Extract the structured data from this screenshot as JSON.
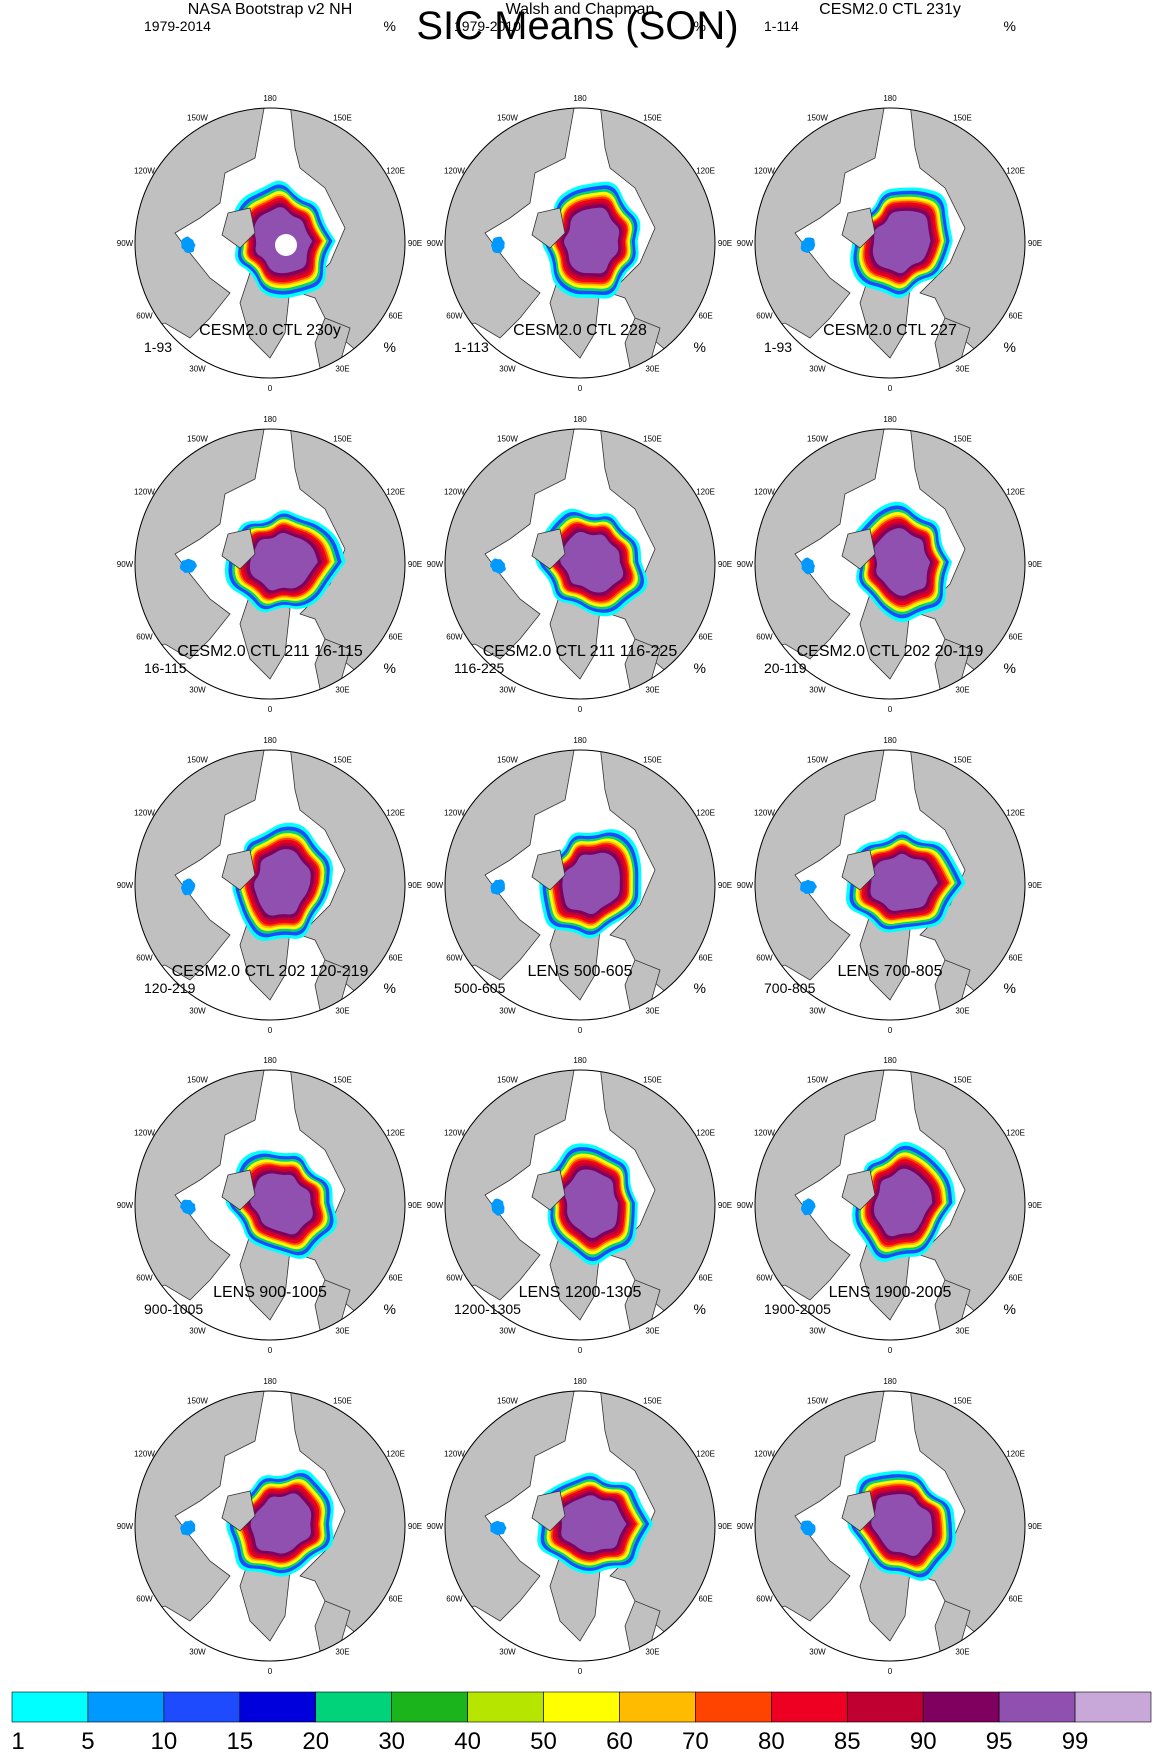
{
  "title": "SIC Means (SON)",
  "unit": "%",
  "colors": {
    "land": "#c0c0c0",
    "ocean": "#ffffff",
    "coast": "#333333"
  },
  "longitude_labels": [
    "180",
    "150E",
    "120E",
    "90E",
    "60E",
    "30E",
    "0",
    "30W",
    "60W",
    "90W",
    "120W",
    "150W"
  ],
  "panels": [
    {
      "title": "NASA Bootstrap v2 NH",
      "period": "1979-2014",
      "unit": "%"
    },
    {
      "title": "Walsh and Chapman",
      "period": "1979-2010",
      "unit": "%"
    },
    {
      "title": "CESM2.0 CTL 231y",
      "period": "1-114",
      "unit": "%"
    },
    {
      "title": "CESM2.0 CTL 230y",
      "period": "1-93",
      "unit": "%"
    },
    {
      "title": "CESM2.0 CTL 228",
      "period": "1-113",
      "unit": "%"
    },
    {
      "title": "CESM2.0 CTL 227",
      "period": "1-93",
      "unit": "%"
    },
    {
      "title": "CESM2.0 CTL 211 16-115",
      "period": "16-115",
      "unit": "%"
    },
    {
      "title": "CESM2.0 CTL 211 116-225",
      "period": "116-225",
      "unit": "%"
    },
    {
      "title": "CESM2.0 CTL 202 20-119",
      "period": "20-119",
      "unit": "%"
    },
    {
      "title": "CESM2.0 CTL 202 120-219",
      "period": "120-219",
      "unit": "%"
    },
    {
      "title": "LENS 500-605",
      "period": "500-605",
      "unit": "%"
    },
    {
      "title": "LENS 700-805",
      "period": "700-805",
      "unit": "%"
    },
    {
      "title": "LENS 900-1005",
      "period": "900-1005",
      "unit": "%"
    },
    {
      "title": "LENS 1200-1305",
      "period": "1200-1305",
      "unit": "%"
    },
    {
      "title": "LENS 1900-2005",
      "period": "1900-2005",
      "unit": "%"
    }
  ],
  "chart_data": {
    "type": "heatmap",
    "title": "SIC Means (SON)",
    "variable_unit": "%",
    "projection": "north polar stereographic",
    "colorbar": {
      "labels": [
        "1",
        "5",
        "10",
        "15",
        "20",
        "30",
        "40",
        "50",
        "60",
        "70",
        "80",
        "85",
        "90",
        "95",
        "99"
      ],
      "colors": [
        "#00ffff",
        "#0099ff",
        "#1f4bff",
        "#0000dd",
        "#00d37a",
        "#1cb41c",
        "#b6e600",
        "#ffff00",
        "#ffbb00",
        "#ff4400",
        "#ee0022",
        "#c00030",
        "#800060",
        "#9050b0",
        "#c8a8d8"
      ]
    }
  }
}
